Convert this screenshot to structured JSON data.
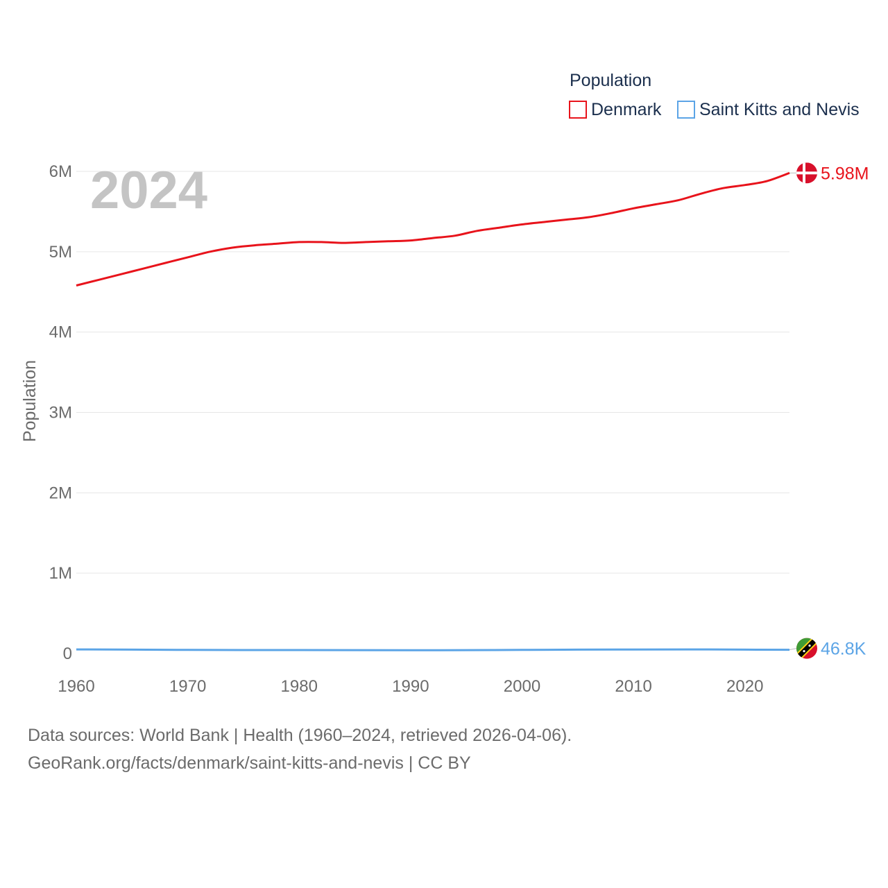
{
  "chart_data": {
    "type": "line",
    "title": "",
    "year_label": "2024",
    "legend": {
      "title": "Population",
      "position": "top-right",
      "items": [
        {
          "name": "Denmark",
          "color": "#e8131b"
        },
        {
          "name": "Saint Kitts and Nevis",
          "color": "#5ba4e6"
        }
      ]
    },
    "xlabel": "",
    "ylabel": "Population",
    "xlim": [
      1960,
      2024
    ],
    "ylim": [
      0,
      6000000
    ],
    "x_ticks": [
      1960,
      1970,
      1980,
      1990,
      2000,
      2010,
      2020
    ],
    "x_tick_labels": [
      "1960",
      "1970",
      "1980",
      "1990",
      "2000",
      "2010",
      "2020"
    ],
    "y_ticks": [
      0,
      1000000,
      2000000,
      3000000,
      4000000,
      5000000,
      6000000
    ],
    "y_tick_labels": [
      "0",
      "1M",
      "2M",
      "3M",
      "4M",
      "5M",
      "6M"
    ],
    "grid": true,
    "series": [
      {
        "name": "Denmark",
        "color": "#e8131b",
        "end_label": "5.98M",
        "flag_icon": "denmark-flag-icon",
        "x": [
          1960,
          1962,
          1964,
          1966,
          1968,
          1970,
          1972,
          1974,
          1976,
          1978,
          1980,
          1982,
          1984,
          1986,
          1988,
          1990,
          1992,
          1994,
          1996,
          1998,
          2000,
          2002,
          2004,
          2006,
          2008,
          2010,
          2012,
          2014,
          2016,
          2018,
          2020,
          2022,
          2024
        ],
        "values": [
          4580000,
          4650000,
          4720000,
          4790000,
          4860000,
          4930000,
          5000000,
          5050000,
          5080000,
          5100000,
          5120000,
          5120000,
          5110000,
          5120000,
          5130000,
          5140000,
          5170000,
          5200000,
          5260000,
          5300000,
          5340000,
          5370000,
          5400000,
          5430000,
          5480000,
          5540000,
          5590000,
          5640000,
          5720000,
          5790000,
          5830000,
          5880000,
          5980000
        ]
      },
      {
        "name": "Saint Kitts and Nevis",
        "color": "#5ba4e6",
        "end_label": "46.8K",
        "flag_icon": "saint-kitts-and-nevis-flag-icon",
        "x": [
          1960,
          1965,
          1970,
          1975,
          1980,
          1985,
          1990,
          1995,
          2000,
          2005,
          2010,
          2015,
          2020,
          2024
        ],
        "values": [
          51000,
          48000,
          45000,
          43000,
          43000,
          42000,
          41000,
          42000,
          45000,
          48000,
          50000,
          51000,
          48000,
          46800
        ]
      }
    ]
  },
  "footer": {
    "line1": "Data sources: World Bank | Health (1960–2024, retrieved 2026-04-06).",
    "line2": "GeoRank.org/facts/denmark/saint-kitts-and-nevis | CC BY"
  }
}
